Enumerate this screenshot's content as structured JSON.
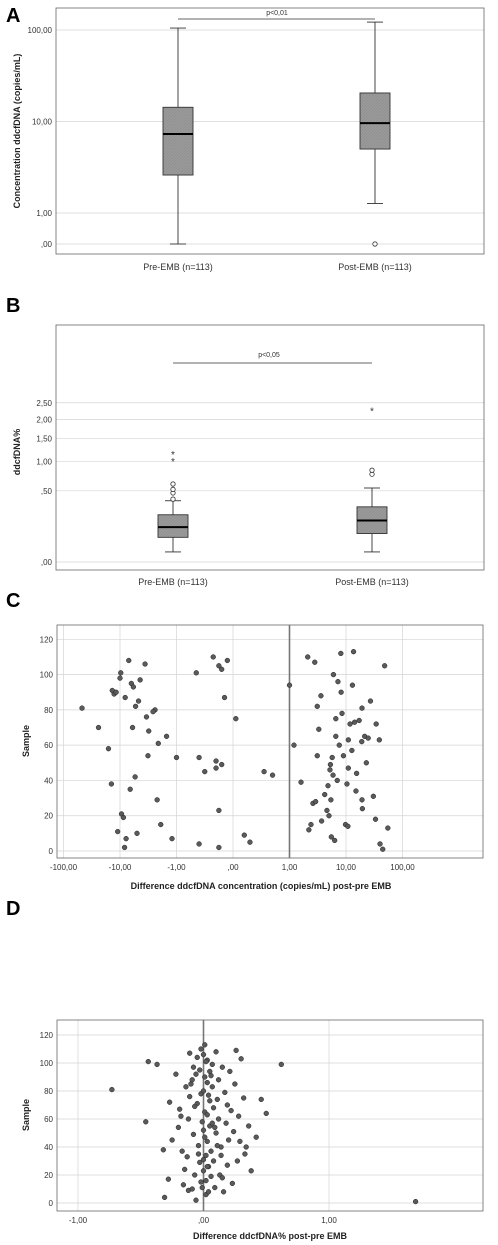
{
  "chart_data": [
    {
      "panel": "A",
      "type": "box",
      "ylabel": "Concentration ddcfDNA (copies/mL)",
      "yscale": "log",
      "yticks": [
        {
          "label": "100,00",
          "value": 100
        },
        {
          "label": "10,00",
          "value": 10
        },
        {
          "label": "1,00",
          "value": 1
        },
        {
          "label": ",00",
          "value": 0
        }
      ],
      "categories": [
        "Pre-EMB (n=113)",
        "Post-EMB (n=113)"
      ],
      "boxes": [
        {
          "whisker_low": 0,
          "q1": 2.6,
          "median": 7.3,
          "q3": 14.3,
          "whisker_high": 105,
          "outliers": [],
          "extremes": []
        },
        {
          "whisker_low": 1.27,
          "q1": 5.0,
          "median": 9.6,
          "q3": 20.5,
          "whisker_high": 122,
          "outliers": [
            0
          ],
          "extremes": []
        }
      ],
      "significance": "p<0,01"
    },
    {
      "panel": "B",
      "type": "box",
      "ylabel": "ddcfDNA%",
      "yscale": "sqrt",
      "yticks": [
        {
          "label": "2,50",
          "value": 2.5
        },
        {
          "label": "2,00",
          "value": 2.0
        },
        {
          "label": "1,50",
          "value": 1.5
        },
        {
          "label": "1,00",
          "value": 1.0
        },
        {
          "label": ",50",
          "value": 0.5
        },
        {
          "label": ",00",
          "value": 0
        }
      ],
      "categories": [
        "Pre-EMB (n=113)",
        "Post-EMB (n=113)"
      ],
      "boxes": [
        {
          "whisker_low": 0.01,
          "q1": 0.06,
          "median": 0.12,
          "q3": 0.22,
          "whisker_high": 0.37,
          "outliers": [
            0.39,
            0.47,
            0.52,
            0.6
          ],
          "extremes": [
            1.01,
            1.15
          ]
        },
        {
          "whisker_low": 0.01,
          "q1": 0.08,
          "median": 0.17,
          "q3": 0.3,
          "whisker_high": 0.54,
          "outliers": [
            0.76,
            0.83
          ],
          "extremes": [
            2.27
          ]
        }
      ],
      "significance": "p<0,05"
    },
    {
      "panel": "C",
      "type": "scatter",
      "xlabel": "Difference ddcfDNA concentration (copies/mL) post-pre EMB",
      "ylabel": "Sample",
      "xscale": "symlog",
      "xticks": [
        {
          "label": "-100,00",
          "value": -100
        },
        {
          "label": "-10,00",
          "value": -10
        },
        {
          "label": "-1,00",
          "value": -1
        },
        {
          "label": ",00",
          "value": 0
        },
        {
          "label": "1,00",
          "value": 1
        },
        {
          "label": "10,00",
          "value": 10
        },
        {
          "label": "100,00",
          "value": 100
        }
      ],
      "yticks": [
        0,
        20,
        40,
        60,
        80,
        100,
        120
      ],
      "xlim": [
        -100,
        100
      ],
      "ylim": [
        0,
        120
      ],
      "reference_line_x": 1,
      "points": [
        [
          -47.0,
          81
        ],
        [
          -24.0,
          70
        ],
        [
          -16.0,
          58
        ],
        [
          -14.2,
          38
        ],
        [
          -11.0,
          11
        ],
        [
          -9.4,
          21
        ],
        [
          -8.7,
          19
        ],
        [
          -8.3,
          2
        ],
        [
          -7.8,
          7
        ],
        [
          -6.6,
          35
        ],
        [
          -5.4,
          42
        ],
        [
          -5.0,
          10
        ],
        [
          -3.1,
          68
        ],
        [
          -2.2,
          29
        ],
        [
          -1.9,
          15
        ],
        [
          -1.2,
          7
        ],
        [
          -0.6,
          4
        ],
        [
          -0.25,
          2
        ],
        [
          -10.0,
          98
        ],
        [
          -9.7,
          101
        ],
        [
          -12.7,
          89
        ],
        [
          -13.7,
          91
        ],
        [
          -11.7,
          90
        ],
        [
          -8.1,
          87
        ],
        [
          -5.3,
          82
        ],
        [
          -6.3,
          95
        ],
        [
          -7.0,
          108
        ],
        [
          -4.7,
          85
        ],
        [
          -3.4,
          76
        ],
        [
          -2.4,
          80
        ],
        [
          -2.6,
          79
        ],
        [
          -3.6,
          106
        ],
        [
          -5.8,
          93
        ],
        [
          -4.4,
          97
        ],
        [
          -2.1,
          61
        ],
        [
          -1.5,
          65
        ],
        [
          -6.0,
          70
        ],
        [
          -3.2,
          54
        ],
        [
          -1.0,
          53
        ],
        [
          -0.65,
          101
        ],
        [
          -0.35,
          110
        ],
        [
          -0.25,
          105
        ],
        [
          -0.2,
          103
        ],
        [
          -0.1,
          108
        ],
        [
          -0.15,
          87
        ],
        [
          0.05,
          75
        ],
        [
          -0.6,
          53
        ],
        [
          -0.5,
          45
        ],
        [
          -0.3,
          51
        ],
        [
          -0.2,
          49
        ],
        [
          -0.3,
          47
        ],
        [
          -0.25,
          23
        ],
        [
          0.2,
          9
        ],
        [
          0.3,
          5
        ],
        [
          0.55,
          45
        ],
        [
          0.7,
          43
        ],
        [
          1.0,
          94
        ],
        [
          1.2,
          60
        ],
        [
          1.6,
          39
        ],
        [
          2.1,
          110
        ],
        [
          2.8,
          107
        ],
        [
          2.6,
          27
        ],
        [
          2.4,
          15
        ],
        [
          2.2,
          12
        ],
        [
          3.6,
          88
        ],
        [
          3.1,
          82
        ],
        [
          3.3,
          69
        ],
        [
          3.1,
          54
        ],
        [
          2.9,
          28
        ],
        [
          3.7,
          17
        ],
        [
          4.2,
          32
        ],
        [
          4.8,
          37
        ],
        [
          4.6,
          23
        ],
        [
          5.0,
          20
        ],
        [
          5.4,
          29
        ],
        [
          5.2,
          46
        ],
        [
          5.5,
          8
        ],
        [
          5.9,
          43
        ],
        [
          5.7,
          53
        ],
        [
          5.3,
          49
        ],
        [
          6.3,
          6
        ],
        [
          6.6,
          75
        ],
        [
          6.6,
          65
        ],
        [
          6.0,
          100
        ],
        [
          7.2,
          96
        ],
        [
          7.6,
          60
        ],
        [
          8.1,
          112
        ],
        [
          8.5,
          78
        ],
        [
          7.0,
          40
        ],
        [
          9.0,
          54
        ],
        [
          8.2,
          90
        ],
        [
          10.4,
          38
        ],
        [
          9.8,
          15
        ],
        [
          10.8,
          14
        ],
        [
          11.0,
          63
        ],
        [
          11.8,
          72
        ],
        [
          12.7,
          57
        ],
        [
          11.0,
          47
        ],
        [
          13.6,
          113
        ],
        [
          13.0,
          94
        ],
        [
          15.4,
          44
        ],
        [
          14.2,
          73
        ],
        [
          15.0,
          34
        ],
        [
          17.1,
          74
        ],
        [
          19.2,
          81
        ],
        [
          19.0,
          62
        ],
        [
          19.5,
          24
        ],
        [
          19.2,
          29
        ],
        [
          21.4,
          65
        ],
        [
          22.9,
          50
        ],
        [
          24.7,
          64
        ],
        [
          27.1,
          85
        ],
        [
          30.5,
          31
        ],
        [
          34.2,
          72
        ],
        [
          33.3,
          18
        ],
        [
          38.9,
          63
        ],
        [
          40.0,
          4
        ],
        [
          44.7,
          1
        ],
        [
          48.3,
          105
        ],
        [
          55.0,
          13
        ]
      ]
    },
    {
      "panel": "D",
      "type": "scatter",
      "xlabel": "Difference ddcfDNA% post-pre EMB",
      "ylabel": "Sample",
      "xticks": [
        {
          "label": "-1,00",
          "value": -1
        },
        {
          "label": ",00",
          "value": 0
        },
        {
          "label": "1,00",
          "value": 1
        }
      ],
      "yticks": [
        0,
        20,
        40,
        60,
        80,
        100,
        120
      ],
      "xlim": [
        -1.25,
        2.35
      ],
      "ylim": [
        0,
        120
      ],
      "reference_line_x": 0,
      "points": [
        [
          -0.73,
          81
        ],
        [
          -0.44,
          101
        ],
        [
          -0.46,
          58
        ],
        [
          -0.37,
          99
        ],
        [
          -0.32,
          38
        ],
        [
          -0.28,
          17
        ],
        [
          -0.31,
          4
        ],
        [
          -0.27,
          72
        ],
        [
          -0.25,
          45
        ],
        [
          -0.22,
          92
        ],
        [
          -0.2,
          54
        ],
        [
          -0.19,
          67
        ],
        [
          -0.17,
          37
        ],
        [
          -0.16,
          13
        ],
        [
          -0.15,
          24
        ],
        [
          -0.13,
          33
        ],
        [
          -0.12,
          9
        ],
        [
          -0.12,
          60
        ],
        [
          -0.11,
          76
        ],
        [
          -0.1,
          85
        ],
        [
          -0.09,
          88
        ],
        [
          -0.08,
          97
        ],
        [
          -0.08,
          49
        ],
        [
          -0.07,
          20
        ],
        [
          -0.06,
          2
        ],
        [
          -0.05,
          104
        ],
        [
          -0.05,
          71
        ],
        [
          -0.04,
          41
        ],
        [
          -0.03,
          29
        ],
        [
          -0.03,
          95
        ],
        [
          -0.02,
          110
        ],
        [
          -0.02,
          78
        ],
        [
          -0.01,
          58
        ],
        [
          -0.01,
          11
        ],
        [
          0.0,
          106
        ],
        [
          0.0,
          80
        ],
        [
          0.0,
          52
        ],
        [
          0.0,
          23
        ],
        [
          0.01,
          113
        ],
        [
          0.01,
          90
        ],
        [
          0.01,
          65
        ],
        [
          0.01,
          47
        ],
        [
          0.02,
          34
        ],
        [
          0.02,
          16
        ],
        [
          0.02,
          6
        ],
        [
          0.03,
          102
        ],
        [
          0.03,
          86
        ],
        [
          0.03,
          63
        ],
        [
          0.03,
          44
        ],
        [
          0.04,
          26
        ],
        [
          0.04,
          8
        ],
        [
          0.05,
          94
        ],
        [
          0.05,
          73
        ],
        [
          0.05,
          55
        ],
        [
          0.06,
          37
        ],
        [
          0.06,
          19
        ],
        [
          0.07,
          99
        ],
        [
          0.07,
          83
        ],
        [
          0.08,
          68
        ],
        [
          0.08,
          30
        ],
        [
          0.09,
          11
        ],
        [
          0.1,
          108
        ],
        [
          0.1,
          50
        ],
        [
          0.11,
          74
        ],
        [
          0.12,
          88
        ],
        [
          0.12,
          60
        ],
        [
          0.13,
          20
        ],
        [
          0.14,
          40
        ],
        [
          0.15,
          97
        ],
        [
          0.16,
          8
        ],
        [
          0.17,
          79
        ],
        [
          0.18,
          57
        ],
        [
          0.19,
          27
        ],
        [
          0.2,
          45
        ],
        [
          0.21,
          94
        ],
        [
          0.22,
          66
        ],
        [
          0.23,
          14
        ],
        [
          0.24,
          51
        ],
        [
          0.25,
          85
        ],
        [
          0.27,
          30
        ],
        [
          0.28,
          62
        ],
        [
          0.3,
          103
        ],
        [
          0.32,
          75
        ],
        [
          0.33,
          35
        ],
        [
          0.34,
          40
        ],
        [
          0.36,
          55
        ],
        [
          0.38,
          23
        ],
        [
          0.42,
          47
        ],
        [
          0.46,
          74
        ],
        [
          0.5,
          64
        ],
        [
          0.62,
          99
        ],
        [
          1.69,
          1
        ],
        [
          -0.18,
          62
        ],
        [
          -0.14,
          83
        ],
        [
          -0.11,
          107
        ],
        [
          -0.07,
          69
        ],
        [
          -0.04,
          35
        ],
        [
          -0.02,
          15
        ],
        [
          0.0,
          31
        ],
        [
          0.02,
          101
        ],
        [
          0.04,
          77
        ],
        [
          0.06,
          91
        ],
        [
          0.09,
          54
        ],
        [
          0.11,
          41
        ],
        [
          0.15,
          18
        ],
        [
          0.19,
          70
        ],
        [
          0.26,
          109
        ],
        [
          0.29,
          44
        ],
        [
          0.07,
          57
        ],
        [
          -0.06,
          92
        ],
        [
          0.03,
          26
        ],
        [
          -0.09,
          10
        ],
        [
          0.14,
          34
        ]
      ]
    }
  ]
}
